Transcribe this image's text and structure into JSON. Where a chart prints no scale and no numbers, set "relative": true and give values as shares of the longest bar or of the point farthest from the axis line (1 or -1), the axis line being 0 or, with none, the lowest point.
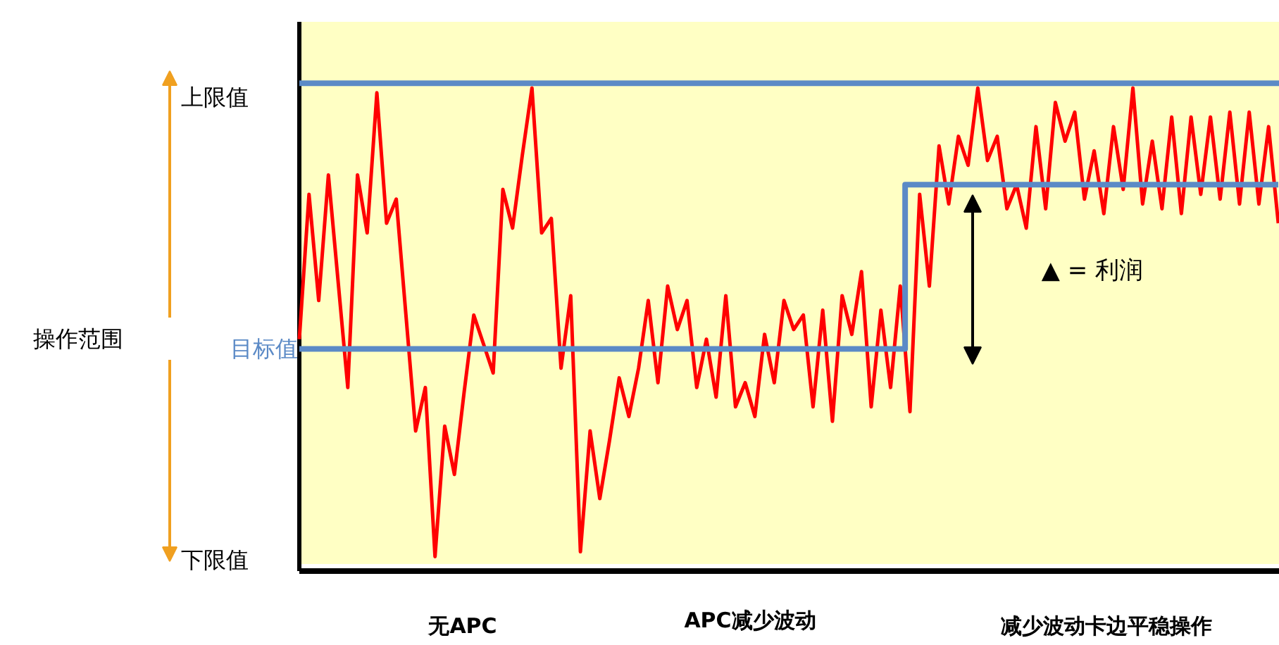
{
  "chart_data": {
    "type": "line",
    "relative": true,
    "categories": [
      null,
      null,
      null,
      null,
      null,
      null,
      null,
      null,
      null,
      null,
      null,
      null,
      null,
      null,
      null,
      null,
      null,
      null,
      null,
      null,
      null,
      null,
      null,
      null,
      null,
      null,
      null,
      null,
      null,
      null,
      null,
      null,
      null,
      null,
      null,
      null,
      null,
      null,
      null,
      null,
      null,
      null,
      null,
      null,
      null,
      null,
      null,
      null,
      null,
      null,
      null,
      null,
      null,
      null,
      null,
      null,
      null,
      null,
      null,
      null,
      null,
      null,
      null,
      null,
      null,
      null,
      null,
      null,
      null,
      null,
      null,
      null,
      null,
      null,
      null,
      null,
      null,
      null,
      null,
      null,
      null,
      null,
      null,
      null,
      null,
      null,
      null,
      null,
      null,
      null,
      null,
      null,
      null,
      null,
      null,
      null,
      null,
      null,
      null,
      null,
      null,
      null
    ],
    "series": [
      {
        "color": "#ff0000",
        "values": [
          0.48,
          0.78,
          0.56,
          0.82,
          0.6,
          0.38,
          0.82,
          0.7,
          0.99,
          0.72,
          0.77,
          0.53,
          0.29,
          0.38,
          0.03,
          0.3,
          0.2,
          0.37,
          0.53,
          0.47,
          0.41,
          0.79,
          0.71,
          0.86,
          1.0,
          0.7,
          0.73,
          0.42,
          0.57,
          0.04,
          0.29,
          0.15,
          0.27,
          0.4,
          0.32,
          0.42,
          0.56,
          0.39,
          0.59,
          0.5,
          0.56,
          0.38,
          0.48,
          0.36,
          0.57,
          0.34,
          0.39,
          0.32,
          0.49,
          0.39,
          0.56,
          0.5,
          0.53,
          0.34,
          0.54,
          0.31,
          0.57,
          0.49,
          0.62,
          0.34,
          0.54,
          0.38,
          0.59,
          0.33,
          0.78,
          0.59,
          0.88,
          0.76,
          0.9,
          0.84,
          1.0,
          0.85,
          0.9,
          0.75,
          0.8,
          0.71,
          0.92,
          0.75,
          0.97,
          0.89,
          0.95,
          0.77,
          0.87,
          0.74,
          0.92,
          0.79,
          1.0,
          0.76,
          0.89,
          0.75,
          0.94,
          0.74,
          0.94,
          0.78,
          0.94,
          0.77,
          0.95,
          0.76,
          0.95,
          0.76,
          0.92,
          0.72
        ]
      },
      {
        "type": "step",
        "name": "目标值",
        "color": "#5b8ac6",
        "values": [
          0.46,
          0.46,
          0.46,
          0.46,
          0.46,
          0.46,
          0.46,
          0.46,
          0.46,
          0.46,
          0.46,
          0.46,
          0.46,
          0.46,
          0.46,
          0.46,
          0.46,
          0.46,
          0.46,
          0.46,
          0.46,
          0.46,
          0.46,
          0.46,
          0.46,
          0.46,
          0.46,
          0.46,
          0.46,
          0.46,
          0.46,
          0.46,
          0.46,
          0.46,
          0.46,
          0.46,
          0.46,
          0.46,
          0.46,
          0.46,
          0.46,
          0.46,
          0.46,
          0.46,
          0.46,
          0.46,
          0.46,
          0.46,
          0.46,
          0.46,
          0.46,
          0.46,
          0.46,
          0.46,
          0.46,
          0.46,
          0.46,
          0.46,
          0.46,
          0.46,
          0.46,
          0.46,
          0.46,
          0.8,
          0.8,
          0.8,
          0.8,
          0.8,
          0.8,
          0.8,
          0.8,
          0.8,
          0.8,
          0.8,
          0.8,
          0.8,
          0.8,
          0.8,
          0.8,
          0.8,
          0.8,
          0.8,
          0.8,
          0.8,
          0.8,
          0.8,
          0.8,
          0.8,
          0.8,
          0.8,
          0.8,
          0.8,
          0.8,
          0.8,
          0.8,
          0.8,
          0.8,
          0.8,
          0.8,
          0.8,
          0.8,
          0.8
        ]
      }
    ],
    "ref_lines": [
      {
        "axis": "y",
        "value": 1.01,
        "label": "上限值",
        "color": "#5b8ac6"
      },
      {
        "axis": "y",
        "value": 0,
        "label": "下限值",
        "color": "#000000"
      }
    ],
    "annotations": [
      "操作范围",
      "无APC",
      "APC减少波动",
      "减少波动卡边平稳操作",
      "▲ = 利润"
    ]
  }
}
